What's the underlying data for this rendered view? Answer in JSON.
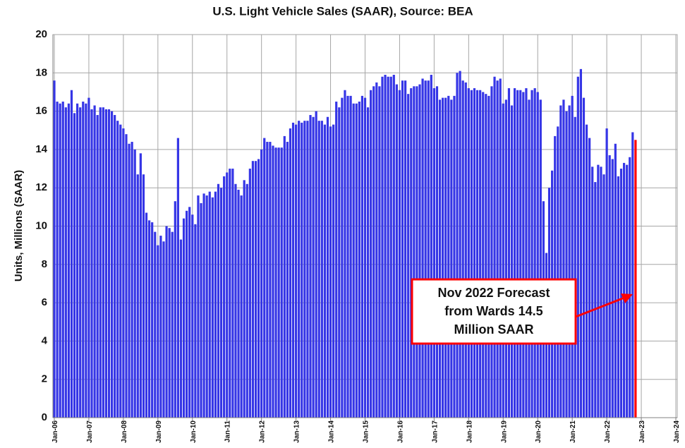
{
  "chart_data": {
    "type": "bar",
    "title": "U.S. Light Vehicle Sales (SAAR), Source: BEA",
    "y_label": "Units, Millions (SAAR)",
    "annotation": [
      "Nov 2022 Forecast",
      "from Wards 14.5",
      " Million SAAR"
    ],
    "categories": [
      "Jan-06",
      null,
      null,
      null,
      null,
      null,
      null,
      null,
      null,
      null,
      null,
      null,
      "Jan-07",
      null,
      null,
      null,
      null,
      null,
      null,
      null,
      null,
      null,
      null,
      null,
      "Jan-08",
      null,
      null,
      null,
      null,
      null,
      null,
      null,
      null,
      null,
      null,
      null,
      "Jan-09",
      null,
      null,
      null,
      null,
      null,
      null,
      null,
      null,
      null,
      null,
      null,
      "Jan-10",
      null,
      null,
      null,
      null,
      null,
      null,
      null,
      null,
      null,
      null,
      null,
      "Jan-11",
      null,
      null,
      null,
      null,
      null,
      null,
      null,
      null,
      null,
      null,
      null,
      "Jan-12",
      null,
      null,
      null,
      null,
      null,
      null,
      null,
      null,
      null,
      null,
      null,
      "Jan-13",
      null,
      null,
      null,
      null,
      null,
      null,
      null,
      null,
      null,
      null,
      null,
      "Jan-14",
      null,
      null,
      null,
      null,
      null,
      null,
      null,
      null,
      null,
      null,
      null,
      "Jan-15",
      null,
      null,
      null,
      null,
      null,
      null,
      null,
      null,
      null,
      null,
      null,
      "Jan-16",
      null,
      null,
      null,
      null,
      null,
      null,
      null,
      null,
      null,
      null,
      null,
      "Jan-17",
      null,
      null,
      null,
      null,
      null,
      null,
      null,
      null,
      null,
      null,
      null,
      "Jan-18",
      null,
      null,
      null,
      null,
      null,
      null,
      null,
      null,
      null,
      null,
      null,
      "Jan-19",
      null,
      null,
      null,
      null,
      null,
      null,
      null,
      null,
      null,
      null,
      null,
      "Jan-20",
      null,
      null,
      null,
      null,
      null,
      null,
      null,
      null,
      null,
      null,
      null,
      "Jan-21",
      null,
      null,
      null,
      null,
      null,
      null,
      null,
      null,
      null,
      null,
      null,
      "Jan-22",
      null,
      null,
      null,
      null,
      null,
      null,
      null,
      null,
      null,
      null,
      null,
      "Jan-23",
      null,
      null,
      null,
      null,
      null,
      null,
      null,
      null,
      null,
      null,
      null,
      "Jan-24"
    ],
    "values": [
      17.6,
      16.5,
      16.4,
      16.5,
      16.2,
      16.4,
      17.1,
      15.9,
      16.4,
      16.2,
      16.5,
      16.4,
      16.7,
      16.1,
      16.3,
      15.8,
      16.2,
      16.2,
      16.1,
      16.1,
      16.0,
      15.8,
      15.5,
      15.3,
      15.1,
      14.8,
      14.3,
      14.4,
      14.0,
      12.7,
      13.8,
      12.7,
      10.7,
      10.3,
      10.2,
      9.7,
      9.0,
      9.5,
      9.2,
      10.0,
      9.9,
      9.7,
      11.3,
      14.6,
      9.3,
      10.4,
      10.8,
      11.0,
      10.6,
      10.1,
      11.6,
      11.2,
      11.7,
      11.6,
      11.8,
      11.5,
      11.8,
      12.2,
      12.0,
      12.6,
      12.8,
      13.0,
      13.0,
      12.2,
      11.9,
      11.6,
      12.4,
      12.2,
      13.0,
      13.4,
      13.4,
      13.5,
      14.0,
      14.6,
      14.4,
      14.4,
      14.2,
      14.1,
      14.1,
      14.1,
      14.7,
      14.4,
      15.1,
      15.4,
      15.3,
      15.5,
      15.4,
      15.5,
      15.5,
      15.8,
      15.7,
      16.0,
      15.5,
      15.5,
      15.3,
      15.7,
      15.2,
      15.3,
      16.5,
      16.2,
      16.7,
      17.1,
      16.8,
      16.8,
      16.4,
      16.4,
      16.5,
      16.8,
      16.7,
      16.2,
      17.1,
      17.3,
      17.5,
      17.3,
      17.8,
      17.9,
      17.8,
      17.8,
      17.9,
      17.4,
      17.1,
      17.6,
      17.6,
      16.9,
      17.2,
      17.3,
      17.3,
      17.4,
      17.7,
      17.6,
      17.6,
      17.9,
      17.2,
      17.3,
      16.6,
      16.7,
      16.7,
      16.8,
      16.6,
      16.8,
      18.0,
      18.1,
      17.6,
      17.5,
      17.2,
      17.1,
      17.2,
      17.1,
      17.1,
      17.0,
      16.9,
      16.8,
      17.3,
      17.8,
      17.6,
      17.7,
      16.4,
      16.6,
      17.2,
      16.3,
      17.2,
      17.1,
      17.1,
      17.0,
      17.2,
      16.6,
      17.1,
      17.2,
      17.0,
      16.6,
      11.3,
      8.6,
      12.0,
      12.9,
      14.7,
      15.2,
      16.3,
      16.6,
      16.0,
      16.3,
      16.8,
      15.7,
      17.8,
      18.2,
      16.7,
      15.3,
      14.6,
      13.1,
      12.3,
      13.2,
      13.1,
      12.7,
      15.1,
      13.7,
      13.5,
      14.3,
      12.6,
      13.0,
      13.3,
      13.2,
      13.6,
      14.9,
      14.5,
      null,
      null,
      null,
      null,
      null,
      null,
      null,
      null,
      null,
      null,
      null,
      null,
      null,
      null
    ],
    "color": "#3535e6",
    "forecast_color": "#ff0000",
    "ylim": [
      0,
      20
    ],
    "yticks": [
      0,
      2,
      4,
      6,
      8,
      10,
      12,
      14,
      16,
      18,
      20
    ],
    "grid": true
  }
}
